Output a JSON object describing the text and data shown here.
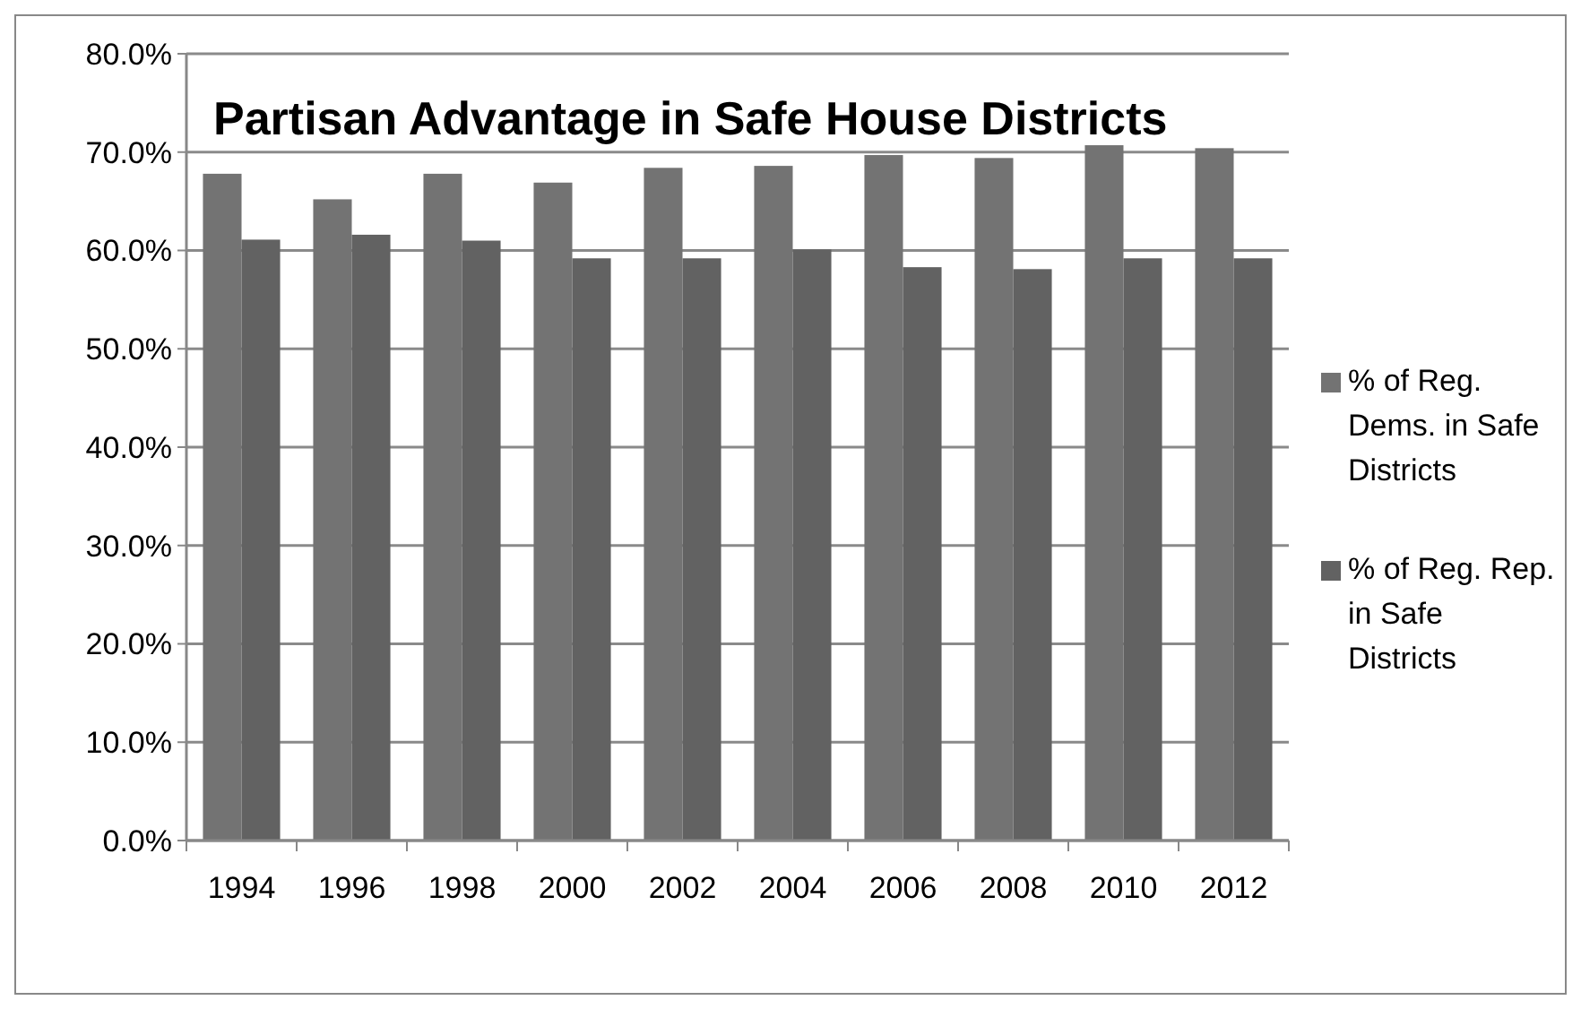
{
  "chart_data": {
    "type": "bar",
    "title": "Partisan Advantage in Safe House Districts",
    "categories": [
      "1994",
      "1996",
      "1998",
      "2000",
      "2002",
      "2004",
      "2006",
      "2008",
      "2010",
      "2012"
    ],
    "series": [
      {
        "name": "% of Reg. Dems. in Safe Districts",
        "color": "#737373",
        "values": [
          67.8,
          65.2,
          67.8,
          66.9,
          68.4,
          68.6,
          69.7,
          69.4,
          70.7,
          70.4
        ]
      },
      {
        "name": "% of Reg. Rep. in Safe Districts",
        "color": "#626262",
        "values": [
          61.1,
          61.6,
          61.0,
          59.2,
          59.2,
          60.1,
          58.3,
          58.1,
          59.2,
          59.2
        ]
      }
    ],
    "ylim": [
      0,
      80
    ],
    "yticks": [
      {
        "value": 0,
        "label": "0.0%"
      },
      {
        "value": 10,
        "label": "10.0%"
      },
      {
        "value": 20,
        "label": "20.0%"
      },
      {
        "value": 30,
        "label": "30.0%"
      },
      {
        "value": 40,
        "label": "40.0%"
      },
      {
        "value": 50,
        "label": "50.0%"
      },
      {
        "value": 60,
        "label": "60.0%"
      },
      {
        "value": 70,
        "label": "70.0%"
      },
      {
        "value": 80,
        "label": "80.0%"
      }
    ],
    "grid": "y",
    "legend": "right"
  }
}
